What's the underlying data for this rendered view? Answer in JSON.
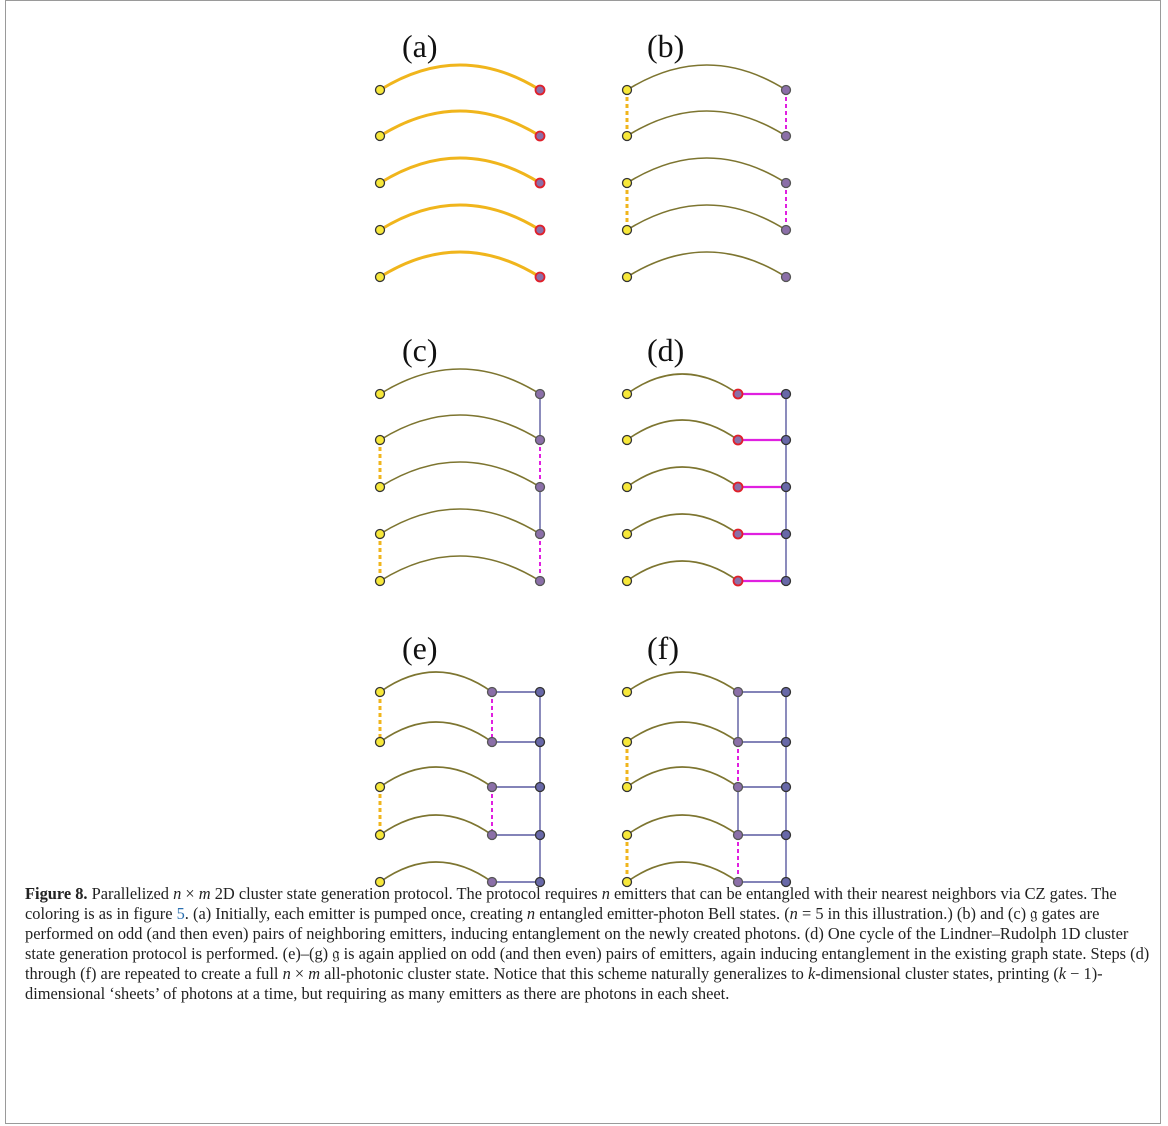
{
  "colors": {
    "yellow_fill": "#f7e83a",
    "orange_edge": "#f0b51c",
    "olive_edge": "#7d7530",
    "magenta": "#e020e0",
    "purple_fill": "#8b6fa8",
    "blue_fill": "#6868a8",
    "red_outline": "#e0202a",
    "grid_line": "#5a5aa0"
  },
  "panels": {
    "a": {
      "label": "(a)"
    },
    "b": {
      "label": "(b)"
    },
    "c": {
      "label": "(c)"
    },
    "d": {
      "label": "(d)"
    },
    "e": {
      "label": "(e)"
    },
    "f": {
      "label": "(f)"
    }
  },
  "caption": {
    "fig": "Figure 8.",
    "s1": " Parallelized ",
    "n": "n",
    "times": " × ",
    "m": "m",
    "s2": " 2D cluster state generation protocol. The protocol requires ",
    "s3": " emitters that can be entangled with their nearest neighbors via ",
    "cz": "CZ",
    "s4": " gates. The coloring is as in figure ",
    "fig5": "5",
    "s5": ". (a) Initially, each emitter is pumped once, creating ",
    "s6": " entangled emitter-photon Bell states. (",
    "s7": " = 5 in this illustration.) (b) and (c) ",
    "g": "𝔤",
    "s8": " gates are performed on odd (and then even) pairs of neighboring emitters, inducing entanglement on the newly created photons. (d) One cycle of the Lindner–Rudolph 1D cluster state generation protocol is performed. (e)–(g) ",
    "s9": " is again applied on odd (and then even) pairs of emitters, again inducing entanglement in the existing graph state. Steps (d) through (f) are repeated to create a full ",
    "s10": " all-photonic cluster state. Notice that this scheme naturally generalizes to ",
    "k": "k",
    "s11": "-dimensional cluster states, printing (",
    "s12": " − 1)-dimensional ‘sheets’ of photons at a time, but requiring as many emitters as there are photons in each sheet."
  }
}
